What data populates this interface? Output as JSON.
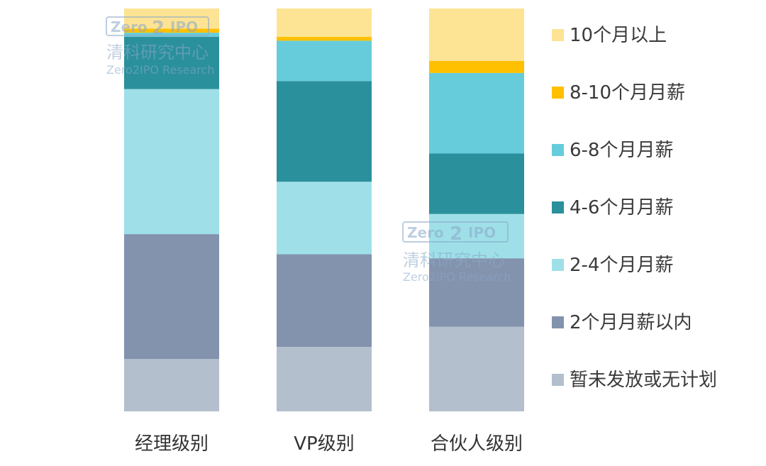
{
  "chart_data": {
    "type": "bar",
    "stacked": true,
    "normalized": true,
    "categories": [
      "经理级别",
      "VP级别",
      "合伙人级别"
    ],
    "series": [
      {
        "name": "暂未发放或无计划",
        "color": "#b3bfcc",
        "values": [
          13,
          16,
          21
        ]
      },
      {
        "name": "2个月月薪以内",
        "color": "#8393ae",
        "values": [
          31,
          23,
          17
        ]
      },
      {
        "name": "2-4个月月薪",
        "color": "#9fe0e8",
        "values": [
          36,
          18,
          11
        ]
      },
      {
        "name": "4-6个月月薪",
        "color": "#2a909c",
        "values": [
          13,
          25,
          15
        ]
      },
      {
        "name": "6-8个月月薪",
        "color": "#66ccdc",
        "values": [
          1,
          10,
          20
        ]
      },
      {
        "name": "8-10个月月薪",
        "color": "#ffc000",
        "values": [
          1,
          1,
          3
        ]
      },
      {
        "name": "10个月以上",
        "color": "#fde494",
        "values": [
          5,
          7,
          13
        ]
      }
    ],
    "ylim": [
      0,
      100
    ],
    "legend_position": "right"
  },
  "watermark": {
    "logo_left": "Zero",
    "logo_mid": "2",
    "logo_right": "IPO",
    "name_cn": "清科研究中心",
    "name_en": "Zero2IPO Research"
  }
}
